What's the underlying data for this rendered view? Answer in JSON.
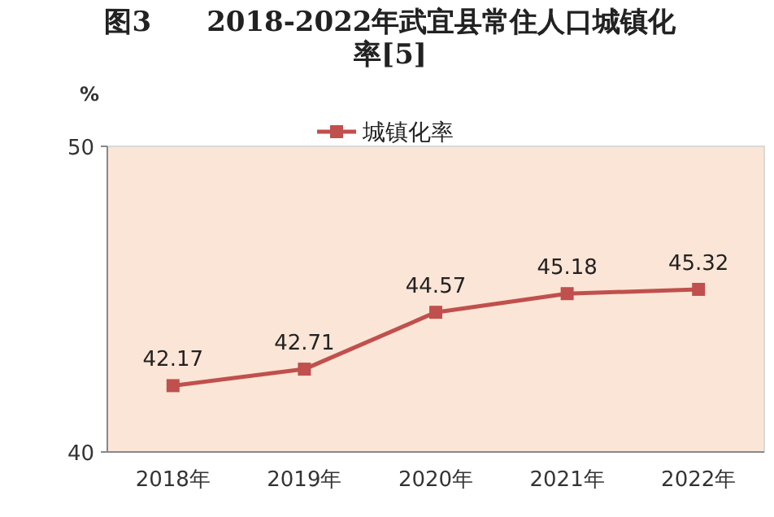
{
  "chart_data": {
    "type": "line",
    "title": "图3　　2018-2022年武宜县常住人口城镇化率[5]",
    "ylabel": "%",
    "categories": [
      "2018年",
      "2019年",
      "2020年",
      "2021年",
      "2022年"
    ],
    "series": [
      {
        "name": "城镇化率",
        "color": "#c0504d",
        "values": [
          42.17,
          42.71,
          44.57,
          45.18,
          45.32
        ]
      }
    ],
    "ylim": [
      40,
      50
    ],
    "yticks": [
      40,
      50
    ],
    "legend": "top",
    "marker": "square",
    "line_style": "solid",
    "data_labels": true,
    "grid": false
  }
}
